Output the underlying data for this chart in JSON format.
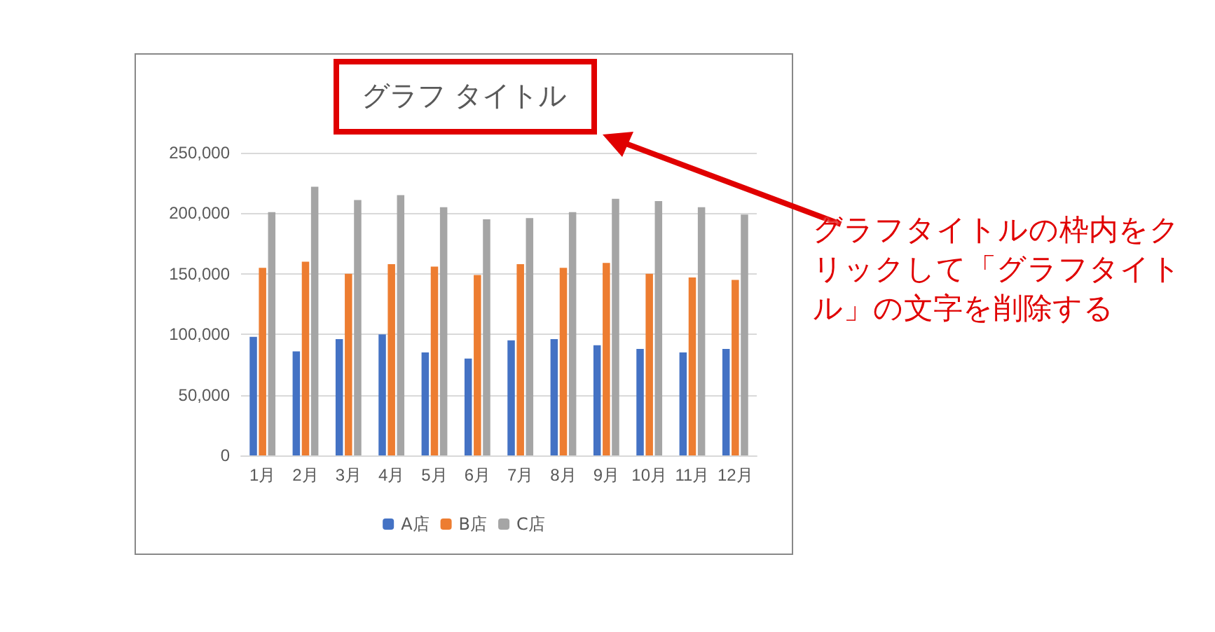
{
  "chart_data": {
    "type": "bar",
    "title": "グラフ タイトル",
    "categories": [
      "1月",
      "2月",
      "3月",
      "4月",
      "5月",
      "6月",
      "7月",
      "8月",
      "9月",
      "10月",
      "11月",
      "12月"
    ],
    "series": [
      {
        "name": "A店",
        "color": "#4472c4",
        "values": [
          98000,
          86000,
          96000,
          100000,
          85000,
          80000,
          95000,
          96000,
          91000,
          88000,
          85000,
          88000
        ]
      },
      {
        "name": "B店",
        "color": "#ed7d31",
        "values": [
          155000,
          160000,
          150000,
          158000,
          156000,
          149000,
          158000,
          155000,
          159000,
          150000,
          147000,
          145000
        ]
      },
      {
        "name": "C店",
        "color": "#a5a5a5",
        "values": [
          201000,
          222000,
          211000,
          215000,
          205000,
          195000,
          196000,
          201000,
          212000,
          210000,
          205000,
          199000
        ]
      }
    ],
    "ylim": [
      0,
      250000
    ],
    "yticks": [
      0,
      {
        "value": 50000,
        "label": "50,000"
      },
      {
        "value": 100000,
        "label": "100,000"
      },
      {
        "value": 150000,
        "label": "150,000"
      },
      {
        "value": 200000,
        "label": "200,000"
      },
      {
        "value": 250000,
        "label": "250,000"
      }
    ],
    "grid": "y",
    "legend": "bottom",
    "annotations": [
      "グラフタイトルの枠内をクリックして「グラフタイトル」の文字を削除する"
    ]
  }
}
